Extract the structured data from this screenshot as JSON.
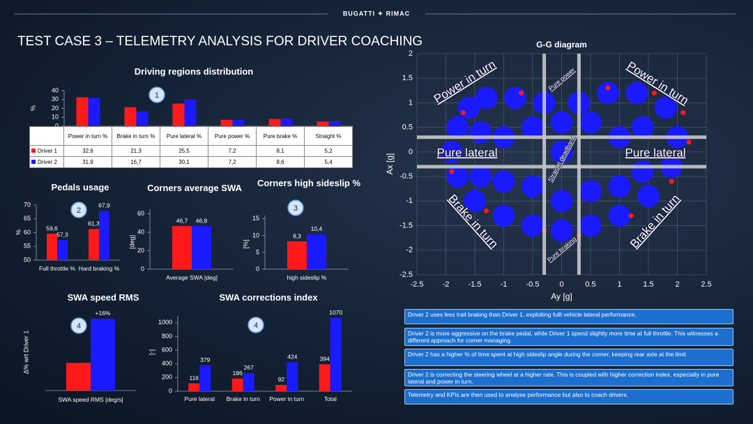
{
  "header": {
    "brand": "BUGATTI ✦ RIMAC",
    "title": "TEST CASE 3 – TELEMETRY ANALYSIS FOR DRIVER COACHING"
  },
  "chart_data": [
    {
      "type": "bar",
      "title": "Driving regions distribution",
      "badge": "1",
      "y_label": "%",
      "table": true,
      "categories": [
        "Power in turn %",
        "Brake in turn %",
        "Pure lateral %",
        "Pure power %",
        "Pure brake %",
        "Straight %"
      ],
      "series": [
        {
          "name": "Driver 1",
          "color": "#ff1a1a",
          "values": [
            32.6,
            21.3,
            25.5,
            7.2,
            8.1,
            5.2
          ],
          "value_labels": [
            "32,6",
            "21,3",
            "25,5",
            "7,2",
            "8,1",
            "5,2"
          ]
        },
        {
          "name": "Driver 2",
          "color": "#1a1aff",
          "values": [
            31.9,
            16.7,
            30.1,
            7.2,
            8.6,
            5.4
          ],
          "value_labels": [
            "31,9",
            "16,7",
            "30,1",
            "7,2",
            "8,6",
            "5,4"
          ]
        }
      ],
      "ylim": [
        0,
        40
      ],
      "yticks": [
        0,
        10,
        20,
        30,
        40
      ]
    },
    {
      "type": "bar",
      "title": "Pedals usage",
      "badge": "2",
      "y_label": "%",
      "categories": [
        "Full throttle %",
        "Hard braking %"
      ],
      "series": [
        {
          "color": "#ff1a1a",
          "values": [
            59.6,
            61.3
          ],
          "value_labels": [
            "59,6",
            "61,3"
          ]
        },
        {
          "color": "#1a1aff",
          "values": [
            57.3,
            67.9
          ],
          "value_labels": [
            "57,3",
            "67,9"
          ]
        }
      ],
      "ylim": [
        50,
        70
      ],
      "yticks": [
        50,
        55,
        60,
        65,
        70
      ]
    },
    {
      "type": "bar",
      "title": "Corners average SWA",
      "y_label": "[deg]",
      "categories": [
        "Average SWA [deg]"
      ],
      "series": [
        {
          "color": "#ff1a1a",
          "values": [
            46.7
          ],
          "value_labels": [
            "46,7"
          ]
        },
        {
          "color": "#1a1aff",
          "values": [
            46.8
          ],
          "value_labels": [
            "46,8"
          ]
        }
      ],
      "ylim": [
        0,
        65
      ],
      "yticks": [
        0,
        20,
        40,
        60
      ]
    },
    {
      "type": "bar",
      "title": "Corners high sideslip %",
      "badge": "3",
      "y_label": "[%]",
      "categories": [
        "high sideslip %"
      ],
      "series": [
        {
          "color": "#ff1a1a",
          "values": [
            8.3
          ],
          "value_labels": [
            "8,3"
          ]
        },
        {
          "color": "#1a1aff",
          "values": [
            10.4
          ],
          "value_labels": [
            "10,4"
          ]
        }
      ],
      "ylim": [
        0,
        16
      ],
      "yticks": [
        0,
        5,
        10,
        15
      ]
    },
    {
      "type": "bar",
      "title": "SWA speed RMS",
      "badge": "4",
      "y_label": "Δ% wrt Driver 1",
      "categories": [
        "SWA speed RMS [deg/s]"
      ],
      "series": [
        {
          "color": "#ff1a1a",
          "values": [
            0
          ]
        },
        {
          "color": "#1a1aff",
          "values": [
            16
          ],
          "value_labels": [
            "+16%"
          ]
        }
      ],
      "ylim": [
        -10,
        16.5
      ]
    },
    {
      "type": "bar",
      "title": "SWA corrections index",
      "badge": "4",
      "y_label": "[-]",
      "show_values": true,
      "categories": [
        "Pure lateral",
        "Brake in turn",
        "Power in turn",
        "Total"
      ],
      "series": [
        {
          "color": "#ff1a1a",
          "values": [
            116,
            186,
            92,
            394
          ]
        },
        {
          "color": "#1a1aff",
          "values": [
            379,
            267,
            424,
            1070
          ]
        }
      ],
      "ylim": [
        0,
        1100
      ],
      "yticks": [
        0,
        200,
        400,
        600,
        800,
        1000
      ]
    },
    {
      "type": "scatter",
      "title": "G-G diagram",
      "x_label": "Ay [g]",
      "y_label": "Ax [g]",
      "grid": true,
      "xlim": [
        -2.5,
        2.5
      ],
      "xticks": [
        -2.5,
        -2,
        -1.5,
        -1,
        -0.5,
        0,
        0.5,
        1,
        1.5,
        2,
        2.5
      ],
      "ylim": [
        -2.5,
        2
      ],
      "yticks": [
        -2.5,
        -2,
        -1.5,
        -1,
        -0.5,
        0,
        0.5,
        1,
        1.5,
        2
      ],
      "threshold_x": [
        -0.3,
        0.3
      ],
      "threshold_y": [
        -0.3,
        0.3
      ],
      "annotations": [
        "Power in turn",
        "Power in turn",
        "Pure lateral",
        "Pure lateral",
        "Brake in turn",
        "Brake in turn",
        "Pure power",
        "Straight deadband",
        "Pure braking"
      ],
      "series": [
        {
          "color": "#ff1a1a",
          "x": [
            2.2,
            2.1,
            1.6,
            -1.9,
            -1.7,
            0.3,
            -0.3,
            1.2,
            -1.3,
            0.8,
            -0.7,
            1.9
          ],
          "y": [
            0.2,
            0.8,
            1.2,
            -0.4,
            0.8,
            -1.7,
            -1.6,
            -1.3,
            -1.2,
            1.3,
            1.2,
            -0.6
          ]
        },
        {
          "color": "#1a1aff",
          "x": [
            -1.8,
            -1.9,
            -1.8,
            -1.5,
            -1,
            -0.5,
            0,
            0.5,
            1,
            1.5,
            1.9,
            2,
            1.8,
            1.3,
            0.8,
            0.3,
            -0.3,
            -0.8,
            -1.3,
            -1.6,
            -1,
            0,
            1,
            0.5,
            -0.5,
            -1.4,
            -1.4,
            -0.5,
            0.5,
            1.4,
            1.4,
            0,
            -1,
            1,
            0
          ],
          "y": [
            0.5,
            0,
            -0.5,
            -1,
            -1.3,
            -1.5,
            -1.6,
            -1.5,
            -1.3,
            -0.9,
            -0.3,
            0.3,
            0.9,
            1.2,
            1.2,
            1,
            1,
            1.1,
            1.1,
            0.9,
            0.3,
            0,
            0.3,
            -0.8,
            -0.7,
            0.4,
            -0.5,
            0.5,
            0.6,
            0.5,
            -0.4,
            -1,
            -0.6,
            -0.7,
            0.6
          ]
        }
      ]
    }
  ],
  "notes": [
    "Driver 2 uses less trail braking than Driver 1, exploiting fullt vehicle lateral performance.",
    "Driver 2 is more aggressive on the brake pedal, while Driver 1 spend slightly more time at full throttle. This witnesses a different approach for corner managing.",
    "Driver 2 has a higher % of time spent at high sideslip angle during the corner, keeping rear axle at the limit.",
    "Driver 2 is correcting the steering wheel at a higher rate. This is coupled with higher correction index, especially in pure lateral and power in turn.",
    "Telemetry and KPIs are then used to analyse performance but also to coach drivers."
  ]
}
